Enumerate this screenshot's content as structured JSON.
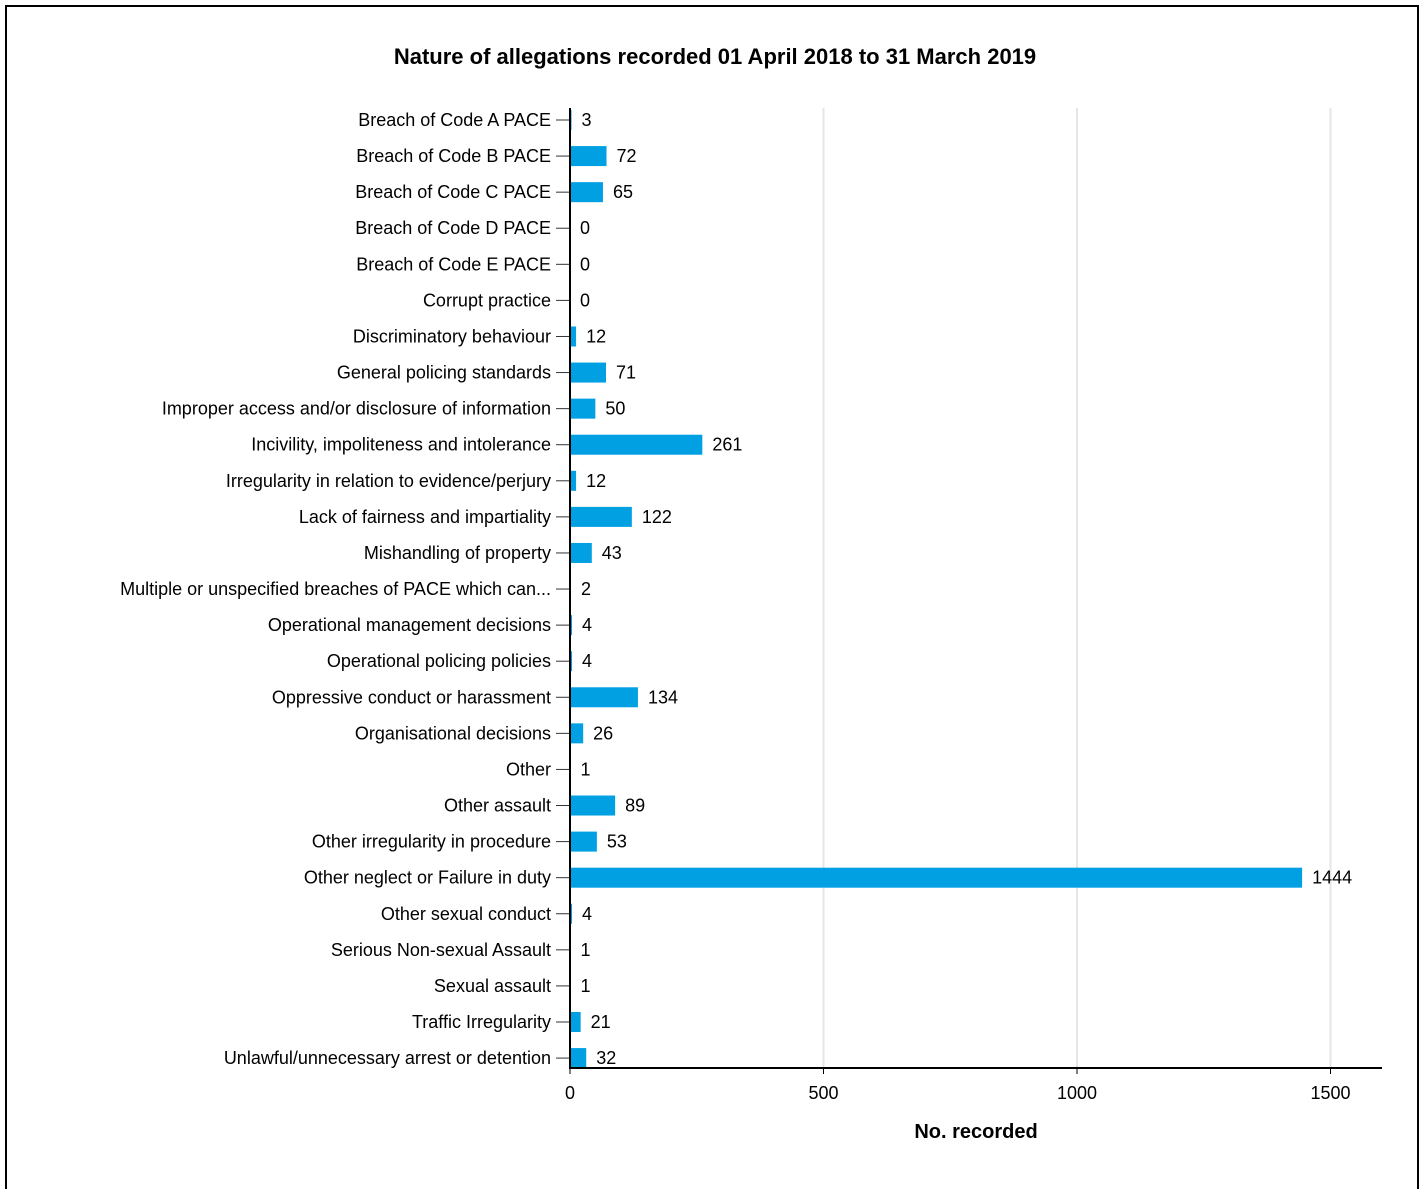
{
  "chart_data": {
    "type": "bar",
    "orientation": "horizontal",
    "title": "Nature of allegations recorded 01 April 2018 to 31 March 2019",
    "xlabel": "No. recorded",
    "ylabel": "",
    "xlim": [
      0,
      1600
    ],
    "xticks": [
      0,
      500,
      1000,
      1500
    ],
    "grid": true,
    "bar_color": "#00a0e3",
    "categories": [
      "Breach of Code A PACE",
      "Breach of Code B PACE",
      "Breach of Code C PACE",
      "Breach of Code D PACE",
      "Breach of Code E PACE",
      "Corrupt practice",
      "Discriminatory behaviour",
      "General policing standards",
      "Improper access and/or disclosure of information",
      "Incivility, impoliteness and intolerance",
      "Irregularity in relation to evidence/perjury",
      "Lack of fairness and impartiality",
      "Mishandling of property",
      "Multiple or unspecified breaches of PACE which can...",
      "Operational management decisions",
      "Operational policing policies",
      "Oppressive conduct or harassment",
      "Organisational decisions",
      "Other",
      "Other assault",
      "Other irregularity in procedure",
      "Other neglect or Failure in duty",
      "Other sexual conduct",
      "Serious Non-sexual Assault",
      "Sexual assault",
      "Traffic Irregularity",
      "Unlawful/unnecessary arrest or detention"
    ],
    "values": [
      3,
      72,
      65,
      0,
      0,
      0,
      12,
      71,
      50,
      261,
      12,
      122,
      43,
      2,
      4,
      4,
      134,
      26,
      1,
      89,
      53,
      1444,
      4,
      1,
      1,
      21,
      32
    ]
  }
}
